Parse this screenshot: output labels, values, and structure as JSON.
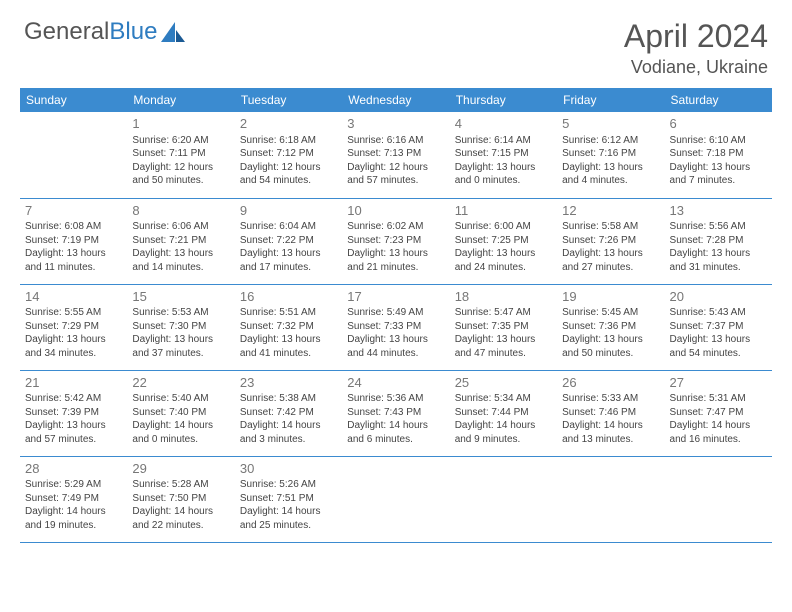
{
  "brand": {
    "part1": "General",
    "part2": "Blue"
  },
  "title": "April 2024",
  "location": "Vodiane, Ukraine",
  "colors": {
    "header_bg": "#3b8bd0",
    "header_text": "#ffffff",
    "cell_text": "#444444",
    "daynum": "#777777",
    "border": "#3b8bd0",
    "title_color": "#555555"
  },
  "dayHeaders": [
    "Sunday",
    "Monday",
    "Tuesday",
    "Wednesday",
    "Thursday",
    "Friday",
    "Saturday"
  ],
  "weeks": [
    [
      {
        "n": "",
        "sr": "",
        "ss": "",
        "dl": ""
      },
      {
        "n": "1",
        "sr": "Sunrise: 6:20 AM",
        "ss": "Sunset: 7:11 PM",
        "dl": "Daylight: 12 hours and 50 minutes."
      },
      {
        "n": "2",
        "sr": "Sunrise: 6:18 AM",
        "ss": "Sunset: 7:12 PM",
        "dl": "Daylight: 12 hours and 54 minutes."
      },
      {
        "n": "3",
        "sr": "Sunrise: 6:16 AM",
        "ss": "Sunset: 7:13 PM",
        "dl": "Daylight: 12 hours and 57 minutes."
      },
      {
        "n": "4",
        "sr": "Sunrise: 6:14 AM",
        "ss": "Sunset: 7:15 PM",
        "dl": "Daylight: 13 hours and 0 minutes."
      },
      {
        "n": "5",
        "sr": "Sunrise: 6:12 AM",
        "ss": "Sunset: 7:16 PM",
        "dl": "Daylight: 13 hours and 4 minutes."
      },
      {
        "n": "6",
        "sr": "Sunrise: 6:10 AM",
        "ss": "Sunset: 7:18 PM",
        "dl": "Daylight: 13 hours and 7 minutes."
      }
    ],
    [
      {
        "n": "7",
        "sr": "Sunrise: 6:08 AM",
        "ss": "Sunset: 7:19 PM",
        "dl": "Daylight: 13 hours and 11 minutes."
      },
      {
        "n": "8",
        "sr": "Sunrise: 6:06 AM",
        "ss": "Sunset: 7:21 PM",
        "dl": "Daylight: 13 hours and 14 minutes."
      },
      {
        "n": "9",
        "sr": "Sunrise: 6:04 AM",
        "ss": "Sunset: 7:22 PM",
        "dl": "Daylight: 13 hours and 17 minutes."
      },
      {
        "n": "10",
        "sr": "Sunrise: 6:02 AM",
        "ss": "Sunset: 7:23 PM",
        "dl": "Daylight: 13 hours and 21 minutes."
      },
      {
        "n": "11",
        "sr": "Sunrise: 6:00 AM",
        "ss": "Sunset: 7:25 PM",
        "dl": "Daylight: 13 hours and 24 minutes."
      },
      {
        "n": "12",
        "sr": "Sunrise: 5:58 AM",
        "ss": "Sunset: 7:26 PM",
        "dl": "Daylight: 13 hours and 27 minutes."
      },
      {
        "n": "13",
        "sr": "Sunrise: 5:56 AM",
        "ss": "Sunset: 7:28 PM",
        "dl": "Daylight: 13 hours and 31 minutes."
      }
    ],
    [
      {
        "n": "14",
        "sr": "Sunrise: 5:55 AM",
        "ss": "Sunset: 7:29 PM",
        "dl": "Daylight: 13 hours and 34 minutes."
      },
      {
        "n": "15",
        "sr": "Sunrise: 5:53 AM",
        "ss": "Sunset: 7:30 PM",
        "dl": "Daylight: 13 hours and 37 minutes."
      },
      {
        "n": "16",
        "sr": "Sunrise: 5:51 AM",
        "ss": "Sunset: 7:32 PM",
        "dl": "Daylight: 13 hours and 41 minutes."
      },
      {
        "n": "17",
        "sr": "Sunrise: 5:49 AM",
        "ss": "Sunset: 7:33 PM",
        "dl": "Daylight: 13 hours and 44 minutes."
      },
      {
        "n": "18",
        "sr": "Sunrise: 5:47 AM",
        "ss": "Sunset: 7:35 PM",
        "dl": "Daylight: 13 hours and 47 minutes."
      },
      {
        "n": "19",
        "sr": "Sunrise: 5:45 AM",
        "ss": "Sunset: 7:36 PM",
        "dl": "Daylight: 13 hours and 50 minutes."
      },
      {
        "n": "20",
        "sr": "Sunrise: 5:43 AM",
        "ss": "Sunset: 7:37 PM",
        "dl": "Daylight: 13 hours and 54 minutes."
      }
    ],
    [
      {
        "n": "21",
        "sr": "Sunrise: 5:42 AM",
        "ss": "Sunset: 7:39 PM",
        "dl": "Daylight: 13 hours and 57 minutes."
      },
      {
        "n": "22",
        "sr": "Sunrise: 5:40 AM",
        "ss": "Sunset: 7:40 PM",
        "dl": "Daylight: 14 hours and 0 minutes."
      },
      {
        "n": "23",
        "sr": "Sunrise: 5:38 AM",
        "ss": "Sunset: 7:42 PM",
        "dl": "Daylight: 14 hours and 3 minutes."
      },
      {
        "n": "24",
        "sr": "Sunrise: 5:36 AM",
        "ss": "Sunset: 7:43 PM",
        "dl": "Daylight: 14 hours and 6 minutes."
      },
      {
        "n": "25",
        "sr": "Sunrise: 5:34 AM",
        "ss": "Sunset: 7:44 PM",
        "dl": "Daylight: 14 hours and 9 minutes."
      },
      {
        "n": "26",
        "sr": "Sunrise: 5:33 AM",
        "ss": "Sunset: 7:46 PM",
        "dl": "Daylight: 14 hours and 13 minutes."
      },
      {
        "n": "27",
        "sr": "Sunrise: 5:31 AM",
        "ss": "Sunset: 7:47 PM",
        "dl": "Daylight: 14 hours and 16 minutes."
      }
    ],
    [
      {
        "n": "28",
        "sr": "Sunrise: 5:29 AM",
        "ss": "Sunset: 7:49 PM",
        "dl": "Daylight: 14 hours and 19 minutes."
      },
      {
        "n": "29",
        "sr": "Sunrise: 5:28 AM",
        "ss": "Sunset: 7:50 PM",
        "dl": "Daylight: 14 hours and 22 minutes."
      },
      {
        "n": "30",
        "sr": "Sunrise: 5:26 AM",
        "ss": "Sunset: 7:51 PM",
        "dl": "Daylight: 14 hours and 25 minutes."
      },
      {
        "n": "",
        "sr": "",
        "ss": "",
        "dl": ""
      },
      {
        "n": "",
        "sr": "",
        "ss": "",
        "dl": ""
      },
      {
        "n": "",
        "sr": "",
        "ss": "",
        "dl": ""
      },
      {
        "n": "",
        "sr": "",
        "ss": "",
        "dl": ""
      }
    ]
  ]
}
